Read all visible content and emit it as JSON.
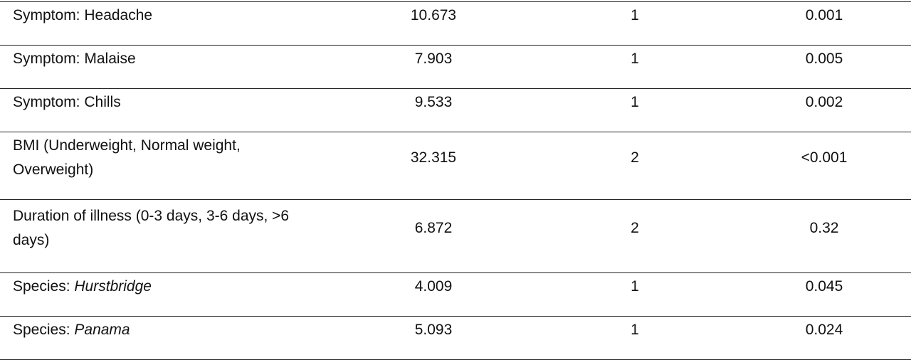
{
  "table": {
    "rows": [
      [
        "Symptom: Headache",
        "10.673",
        "1",
        "0.001"
      ],
      [
        "Symptom: Malaise",
        "7.903",
        "1",
        "0.005"
      ],
      [
        "Symptom: Chills",
        "9.533",
        "1",
        "0.002"
      ],
      [
        "BMI (Underweight, Normal weight, Overweight)",
        "32.315",
        "2",
        "<0.001"
      ],
      [
        "Duration of illness (0-3 days, 3-6 days, >6 days)",
        "6.872",
        "2",
        "0.32"
      ],
      [
        {
          "text": "Species: ",
          "italic": "Hurstbridge"
        },
        "4.009",
        "1",
        "0.045"
      ],
      [
        {
          "text": "Species: ",
          "italic": "Panama"
        },
        "5.093",
        "1",
        "0.024"
      ]
    ]
  }
}
